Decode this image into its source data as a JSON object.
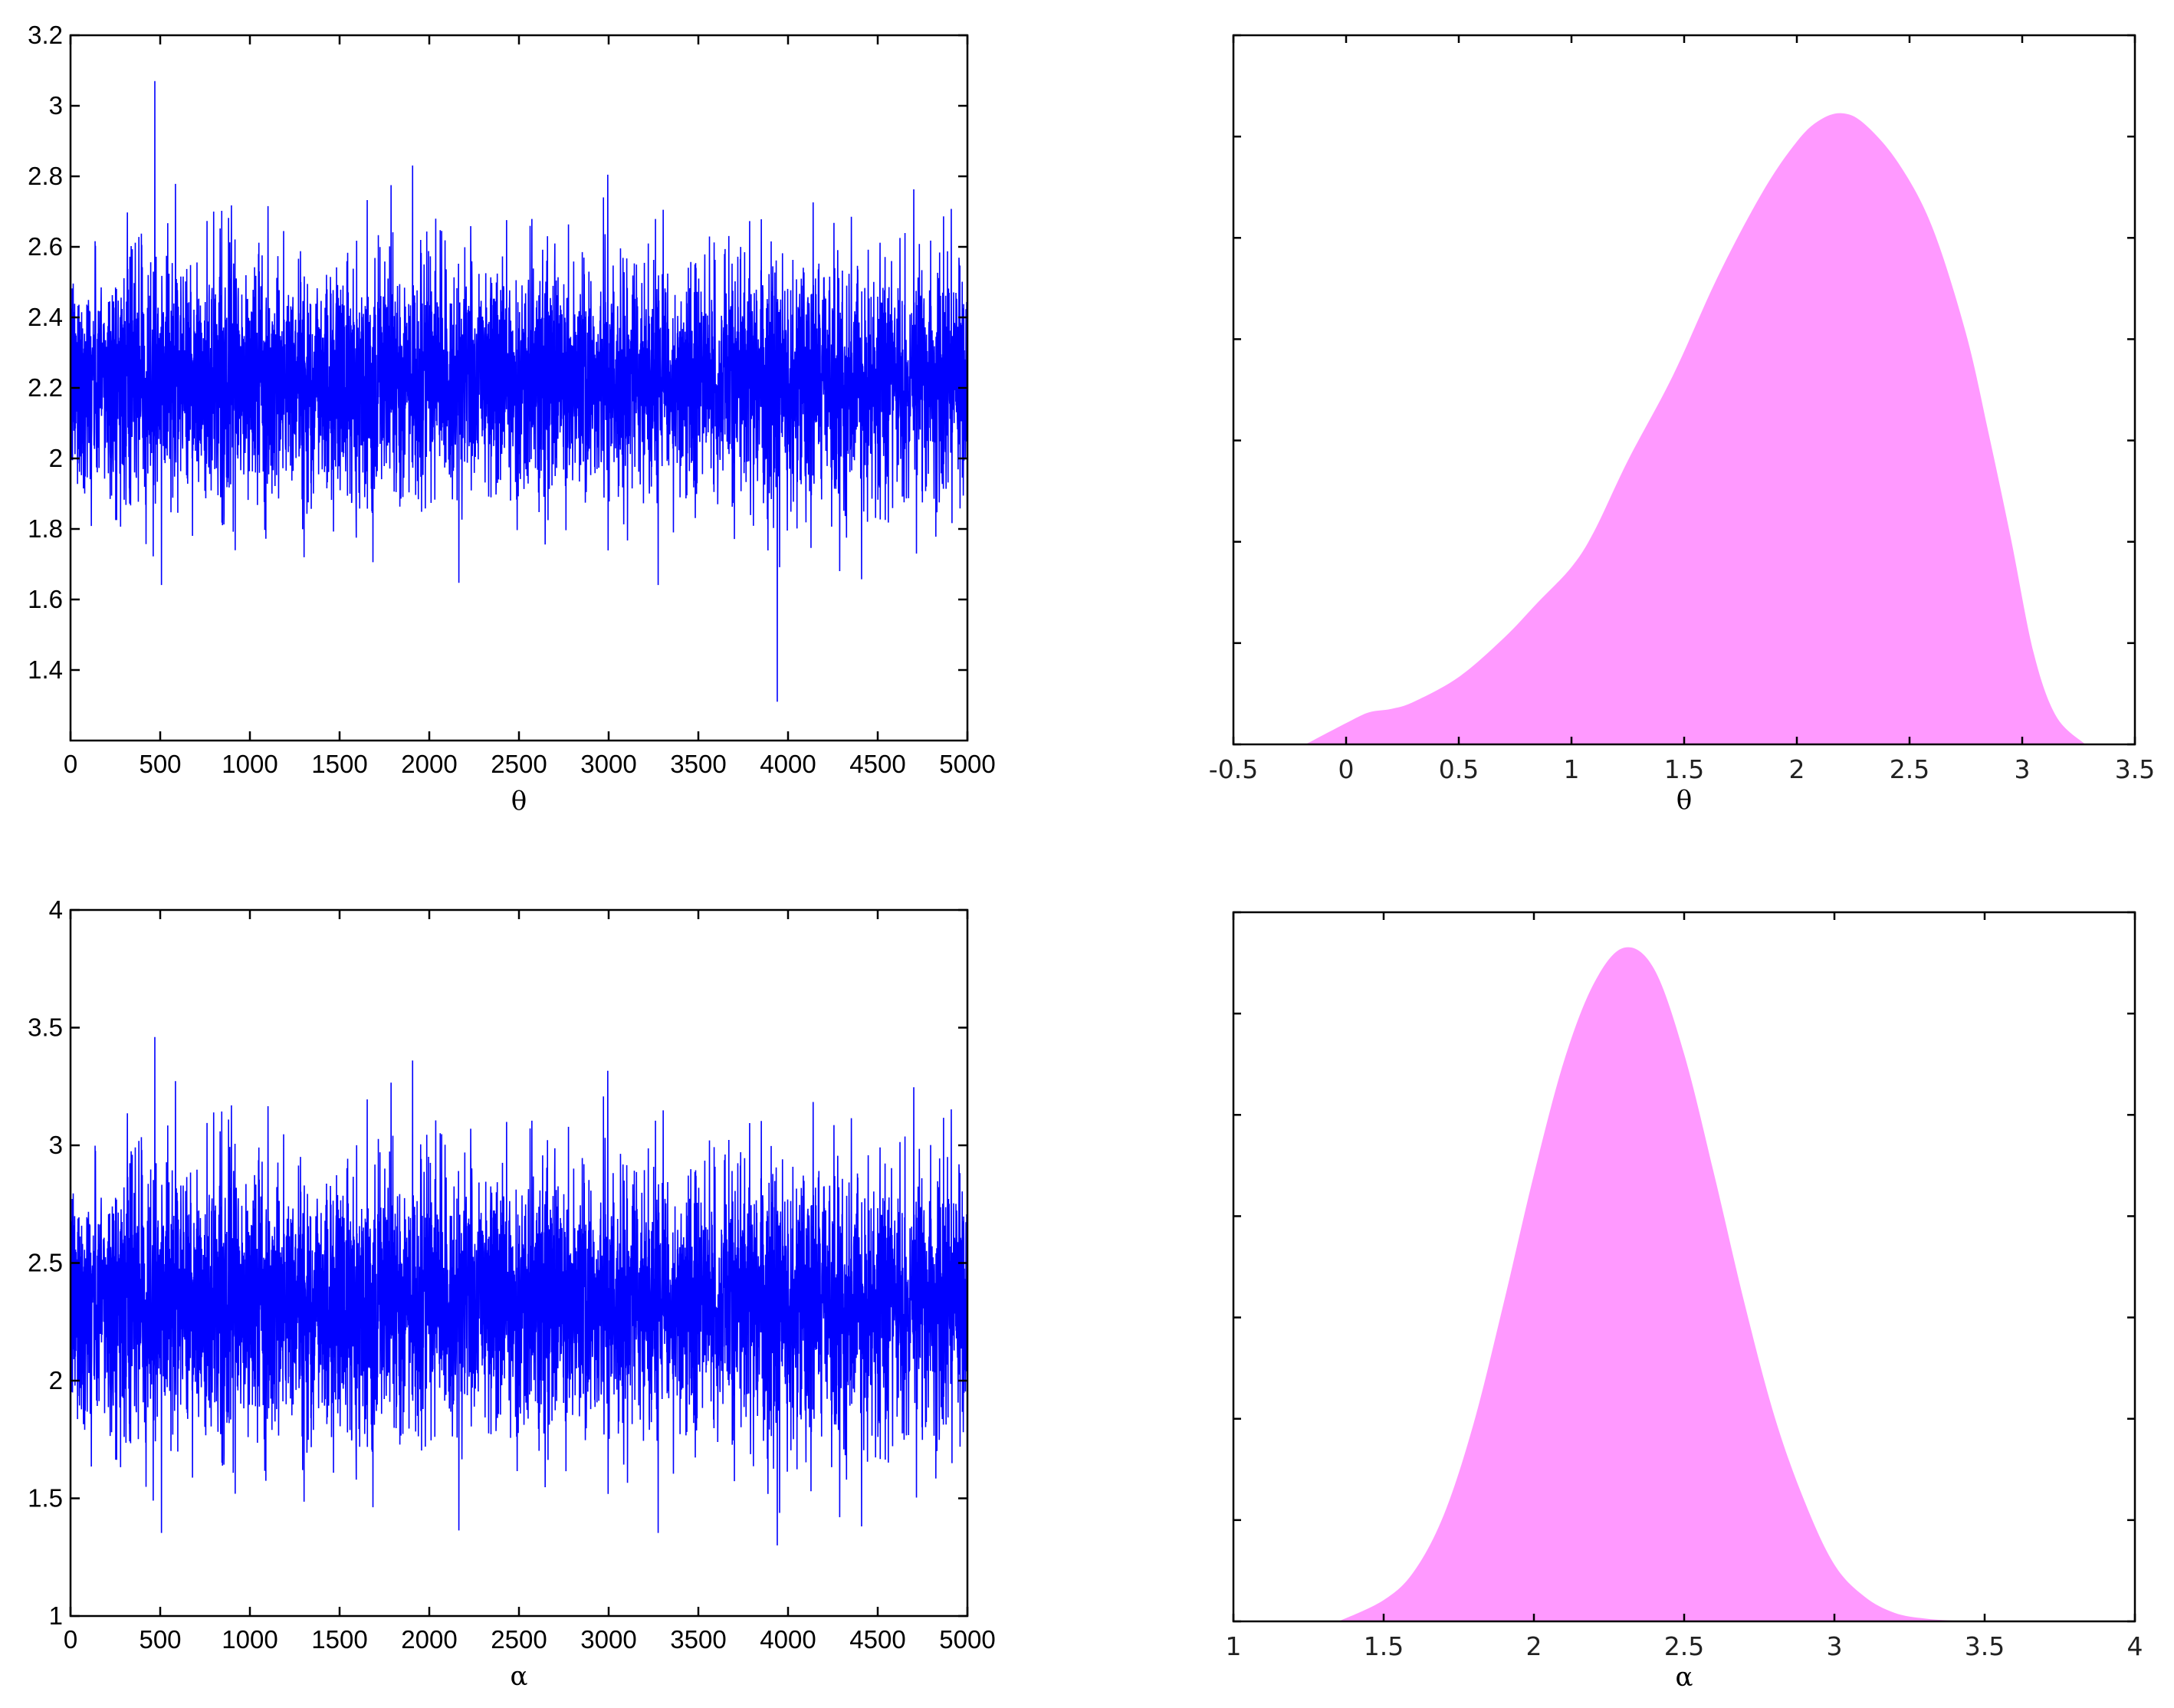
{
  "chart_data": [
    {
      "type": "line",
      "panel": "trace-theta",
      "xlabel": "θ",
      "xlim": [
        0,
        5000
      ],
      "ylim": [
        1.2,
        3.2
      ],
      "xticks": [
        "0",
        "500",
        "1000",
        "1500",
        "2000",
        "2500",
        "3000",
        "3500",
        "4000",
        "4500",
        "5000"
      ],
      "yticks": [
        "1.4",
        "1.6",
        "1.8",
        "2",
        "2.2",
        "2.4",
        "2.6",
        "2.8",
        "3",
        "3.2"
      ],
      "series": [
        {
          "color": "#0000ff",
          "n_iterations": 5000,
          "center": 2.22,
          "typical_band": [
            1.95,
            2.55
          ],
          "observed_min": 1.31,
          "observed_max": 3.07
        }
      ]
    },
    {
      "type": "area",
      "panel": "density-theta",
      "xlabel": "θ",
      "xlim": [
        -0.5,
        3.5
      ],
      "xticks": [
        "-0.5",
        "0",
        "0.5",
        "1",
        "1.5",
        "2",
        "2.5",
        "3",
        "3.5"
      ],
      "y_tick_count": 7,
      "y_tick_labels_shown": false,
      "fill_color": "#ff99ff",
      "x": [
        -0.18,
        0.0,
        0.1,
        0.2,
        0.3,
        0.5,
        0.7,
        0.85,
        1.0,
        1.1,
        1.25,
        1.45,
        1.65,
        1.85,
        2.0,
        2.1,
        2.2,
        2.3,
        2.45,
        2.6,
        2.75,
        2.85,
        2.95,
        3.05,
        3.15,
        3.28
      ],
      "y": [
        0.0,
        0.03,
        0.045,
        0.05,
        0.06,
        0.095,
        0.15,
        0.2,
        0.25,
        0.3,
        0.4,
        0.52,
        0.66,
        0.78,
        0.85,
        0.88,
        0.89,
        0.875,
        0.82,
        0.73,
        0.58,
        0.44,
        0.29,
        0.13,
        0.04,
        0.0
      ],
      "ylim": [
        0,
        1.0
      ]
    },
    {
      "type": "line",
      "panel": "trace-alpha",
      "xlabel": "α",
      "xlim": [
        0,
        5000
      ],
      "ylim": [
        1,
        4
      ],
      "xticks": [
        "0",
        "500",
        "1000",
        "1500",
        "2000",
        "2500",
        "3000",
        "3500",
        "4000",
        "4500",
        "5000"
      ],
      "yticks": [
        "1",
        "1.5",
        "2",
        "2.5",
        "3",
        "3.5",
        "4"
      ],
      "series": [
        {
          "color": "#0000ff",
          "n_iterations": 5000,
          "center": 2.33,
          "typical_band": [
            1.95,
            2.8
          ],
          "observed_min": 1.3,
          "observed_max": 3.46
        }
      ]
    },
    {
      "type": "area",
      "panel": "density-alpha",
      "xlabel": "α",
      "xlim": [
        1,
        4
      ],
      "xticks": [
        "1",
        "1.5",
        "2",
        "2.5",
        "3",
        "3.5",
        "4"
      ],
      "y_tick_count": 7,
      "y_tick_labels_shown": false,
      "fill_color": "#ff99ff",
      "x": [
        1.35,
        1.5,
        1.6,
        1.7,
        1.8,
        1.9,
        2.0,
        2.1,
        2.2,
        2.3,
        2.4,
        2.5,
        2.6,
        2.7,
        2.8,
        2.9,
        3.0,
        3.1,
        3.2,
        3.3,
        3.4,
        3.5
      ],
      "y": [
        0.0,
        0.03,
        0.07,
        0.15,
        0.28,
        0.45,
        0.63,
        0.79,
        0.9,
        0.95,
        0.92,
        0.8,
        0.63,
        0.45,
        0.29,
        0.17,
        0.08,
        0.035,
        0.012,
        0.004,
        0.001,
        0.0
      ],
      "ylim": [
        0,
        1.0
      ]
    }
  ]
}
